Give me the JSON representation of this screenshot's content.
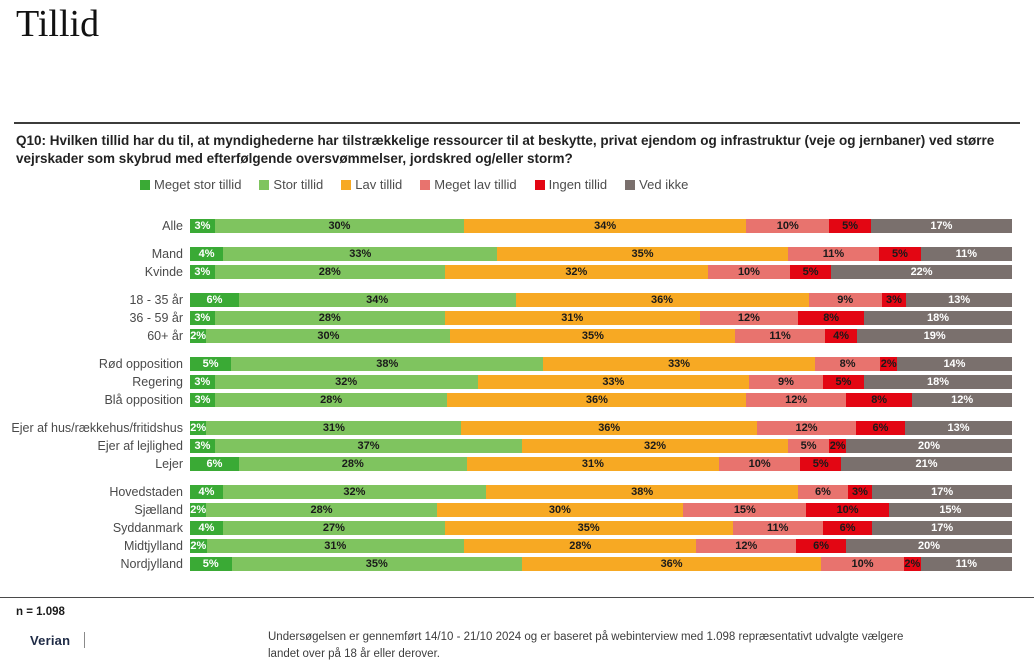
{
  "page": {
    "title": "Tillid"
  },
  "question": {
    "text": "Q10: Hvilken tillid har du til, at myndighederne har tilstrækkelige ressourcer til at beskytte, privat ejendom og infrastruktur (veje og jernbaner) ved større vejrskader som skybrud med efterfølgende oversvømmelser, jordskred og/eller storm?"
  },
  "chart_data": {
    "type": "bar",
    "variant": "stacked-horizontal-100-percent",
    "value_format": "percent",
    "legend_position": "top",
    "series": [
      {
        "name": "Meget stor tillid",
        "color": "#3aaa35",
        "label_color": "#ffffff"
      },
      {
        "name": "Stor tillid",
        "color": "#7fc45f",
        "label_color": "#1a1a1a"
      },
      {
        "name": "Lav tillid",
        "color": "#f7a923",
        "label_color": "#1a1a1a"
      },
      {
        "name": "Meget lav tillid",
        "color": "#e8736e",
        "label_color": "#1a1a1a"
      },
      {
        "name": "Ingen tillid",
        "color": "#e30613",
        "label_color": "#1a1a1a"
      },
      {
        "name": "Ved ikke",
        "color": "#7a706d",
        "label_color": "#ffffff"
      }
    ],
    "groups": [
      {
        "rows": [
          {
            "category": "Alle",
            "values": [
              3,
              30,
              34,
              10,
              5,
              17
            ]
          }
        ]
      },
      {
        "rows": [
          {
            "category": "Mand",
            "values": [
              4,
              33,
              35,
              11,
              5,
              11
            ]
          },
          {
            "category": "Kvinde",
            "values": [
              3,
              28,
              32,
              10,
              5,
              22
            ]
          }
        ]
      },
      {
        "rows": [
          {
            "category": "18 - 35 år",
            "values": [
              6,
              34,
              36,
              9,
              3,
              13
            ]
          },
          {
            "category": "36 - 59 år",
            "values": [
              3,
              28,
              31,
              12,
              8,
              18
            ]
          },
          {
            "category": "60+ år",
            "values": [
              2,
              30,
              35,
              11,
              4,
              19
            ]
          }
        ]
      },
      {
        "rows": [
          {
            "category": "Rød opposition",
            "values": [
              5,
              38,
              33,
              8,
              2,
              14
            ]
          },
          {
            "category": "Regering",
            "values": [
              3,
              32,
              33,
              9,
              5,
              18
            ]
          },
          {
            "category": "Blå opposition",
            "values": [
              3,
              28,
              36,
              12,
              8,
              12
            ]
          }
        ]
      },
      {
        "rows": [
          {
            "category": "Ejer af hus/rækkehus/fritidshus",
            "values": [
              2,
              31,
              36,
              12,
              6,
              13
            ]
          },
          {
            "category": "Ejer af lejlighed",
            "values": [
              3,
              37,
              32,
              5,
              2,
              20
            ]
          },
          {
            "category": "Lejer",
            "values": [
              6,
              28,
              31,
              10,
              5,
              21
            ]
          }
        ]
      },
      {
        "rows": [
          {
            "category": "Hovedstaden",
            "values": [
              4,
              32,
              38,
              6,
              3,
              17
            ]
          },
          {
            "category": "Sjælland",
            "values": [
              2,
              28,
              30,
              15,
              10,
              15
            ]
          },
          {
            "category": "Syddanmark",
            "values": [
              4,
              27,
              35,
              11,
              6,
              17
            ]
          },
          {
            "category": "Midtjylland",
            "values": [
              2,
              31,
              28,
              12,
              6,
              20
            ]
          },
          {
            "category": "Nordjylland",
            "values": [
              5,
              35,
              36,
              10,
              2,
              11
            ]
          }
        ]
      }
    ]
  },
  "footer": {
    "n_label": "n = 1.098",
    "logo_text": "Verian",
    "note": "Undersøgelsen er gennemført 14/10 - 21/10 2024 og er baseret på webinterview med 1.098 repræsentativt udvalgte vælgere landet over på 18 år eller derover."
  }
}
